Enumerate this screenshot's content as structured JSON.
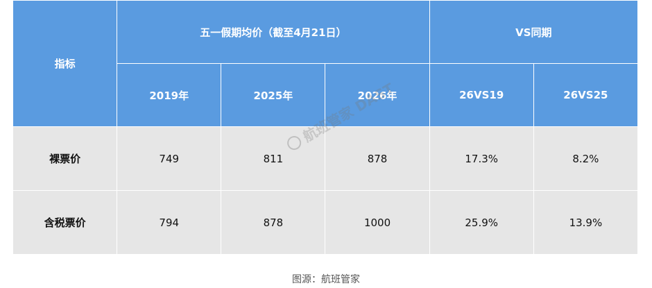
{
  "table": {
    "header": {
      "indicator": "指标",
      "period_group": "五一假期均价（截至4月21日）",
      "compare_group": "VS同期",
      "columns": [
        "2019年",
        "2025年",
        "2026年",
        "26VS19",
        "26VS25"
      ]
    },
    "rows": [
      {
        "label": "裸票价",
        "values": [
          "749",
          "811",
          "878",
          "17.3%",
          "8.2%"
        ]
      },
      {
        "label": "含税票价",
        "values": [
          "794",
          "878",
          "1000",
          "25.9%",
          "13.9%"
        ]
      }
    ]
  },
  "watermark": {
    "text": "航班管家 DAST"
  },
  "caption": "图源：航班管家",
  "colors": {
    "header_bg": "#5a9be0",
    "body_bg": "#e6e6e6"
  }
}
